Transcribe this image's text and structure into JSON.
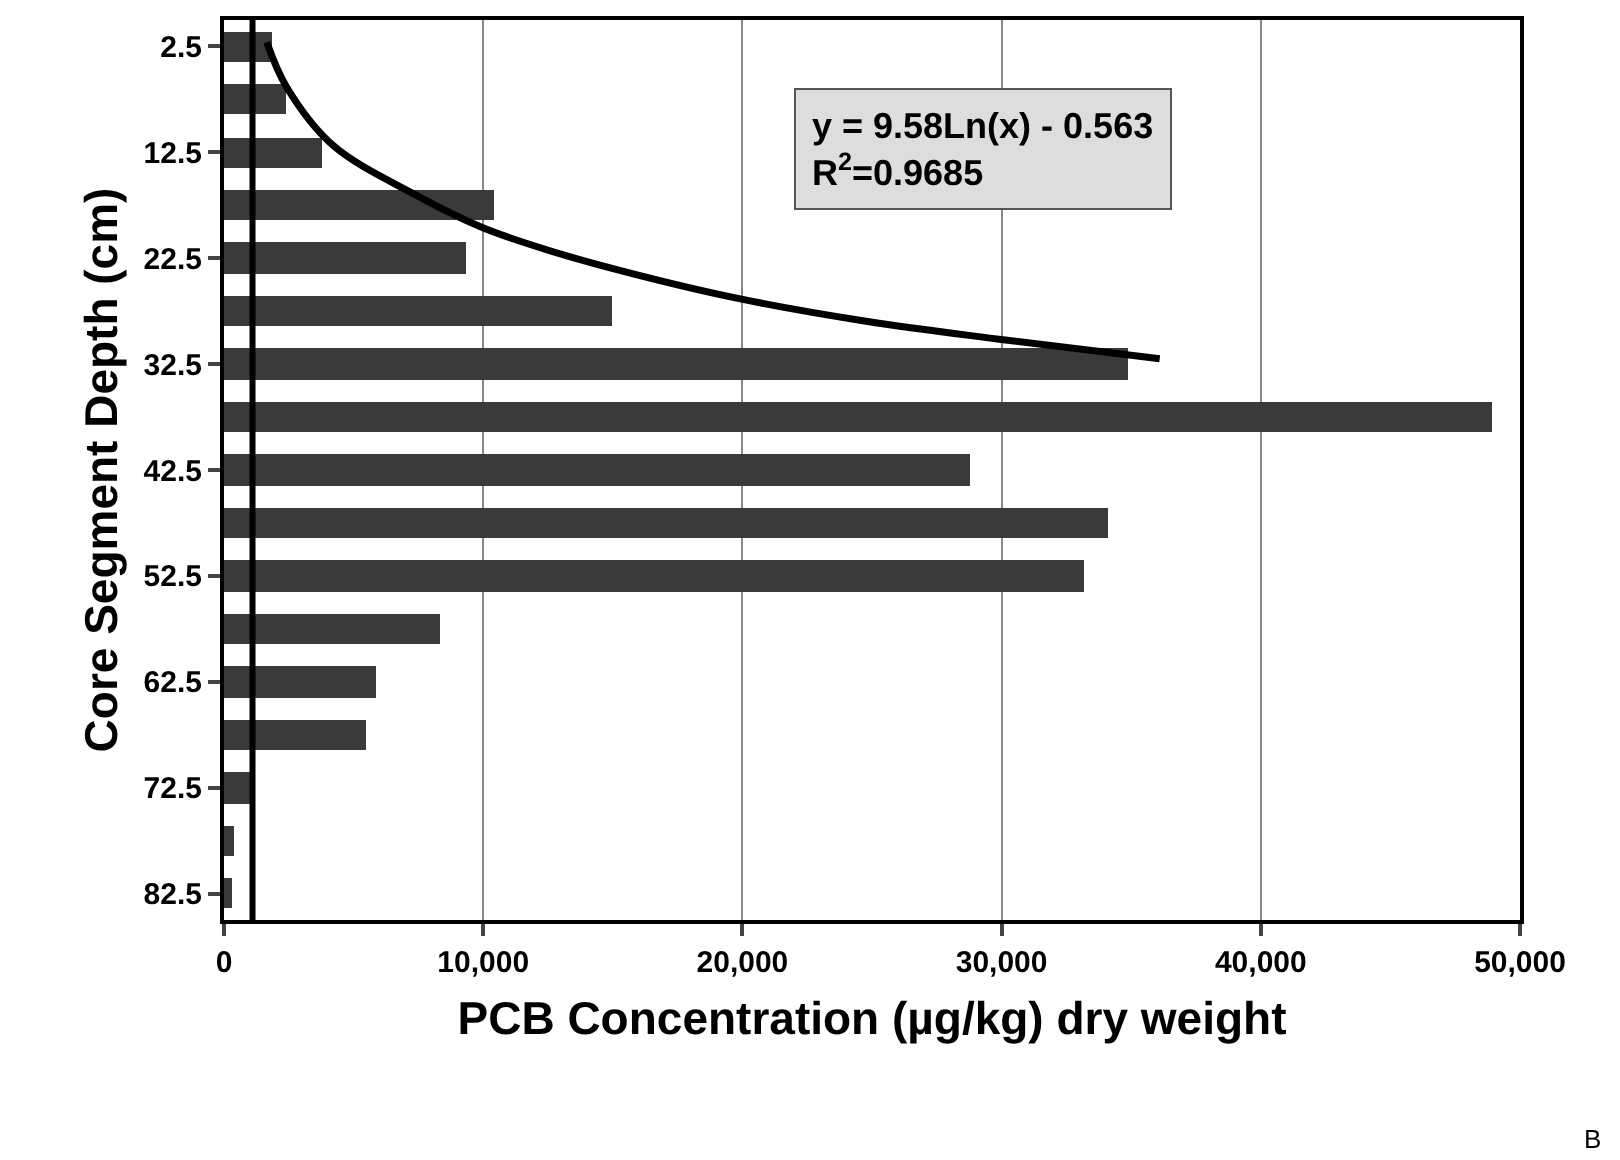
{
  "chart_data": {
    "type": "bar",
    "orientation": "horizontal",
    "xlabel": "PCB Concentration (µg/kg) dry weight",
    "ylabel": "Core Segment Depth (cm)",
    "x": [
      2.5,
      7.5,
      12.5,
      17.5,
      22.5,
      27.5,
      32.5,
      37.5,
      42.5,
      47.5,
      52.5,
      57.5,
      62.5,
      67.5,
      72.5,
      77.5,
      82.5
    ],
    "series": [
      {
        "color": "#3a3a3a",
        "values": [
          1850,
          2400,
          3800,
          10400,
          9300,
          15000,
          34900,
          48900,
          28800,
          34100,
          33200,
          8300,
          5900,
          5500,
          1150,
          370,
          300
        ]
      },
      {
        "type": "line",
        "color": "#000000",
        "line_style": "solid",
        "x": [
          2.1,
          6.35,
          11.85,
          16.4,
          19.5,
          21.3,
          23.15,
          26.2,
          28.45,
          30.15,
          32.0
        ],
        "values": [
          1650,
          2420,
          4210,
          7300,
          9870,
          11930,
          14500,
          19640,
          24770,
          29900,
          36100
        ]
      }
    ],
    "xlim": [
      0,
      50000
    ],
    "xticks": [
      {
        "value": 0,
        "label": "0"
      },
      {
        "value": 10000,
        "label": "10,000"
      },
      {
        "value": 20000,
        "label": "20,000"
      },
      {
        "value": 30000,
        "label": "30,000"
      },
      {
        "value": 40000,
        "label": "40,000"
      },
      {
        "value": 50000,
        "label": "50,000"
      }
    ],
    "ylim": [
      85,
      0
    ],
    "yticks": [
      2.5,
      12.5,
      22.5,
      32.5,
      42.5,
      52.5,
      62.5,
      72.5,
      82.5
    ],
    "ref_lines": [
      {
        "axis": "x",
        "value": 1100,
        "color": "#000000"
      }
    ],
    "annotations": [
      "y = 9.58Ln(x) - 0.563",
      "R$^{2}$=0.9685",
      "B"
    ],
    "grid": "x",
    "marker": "none"
  }
}
